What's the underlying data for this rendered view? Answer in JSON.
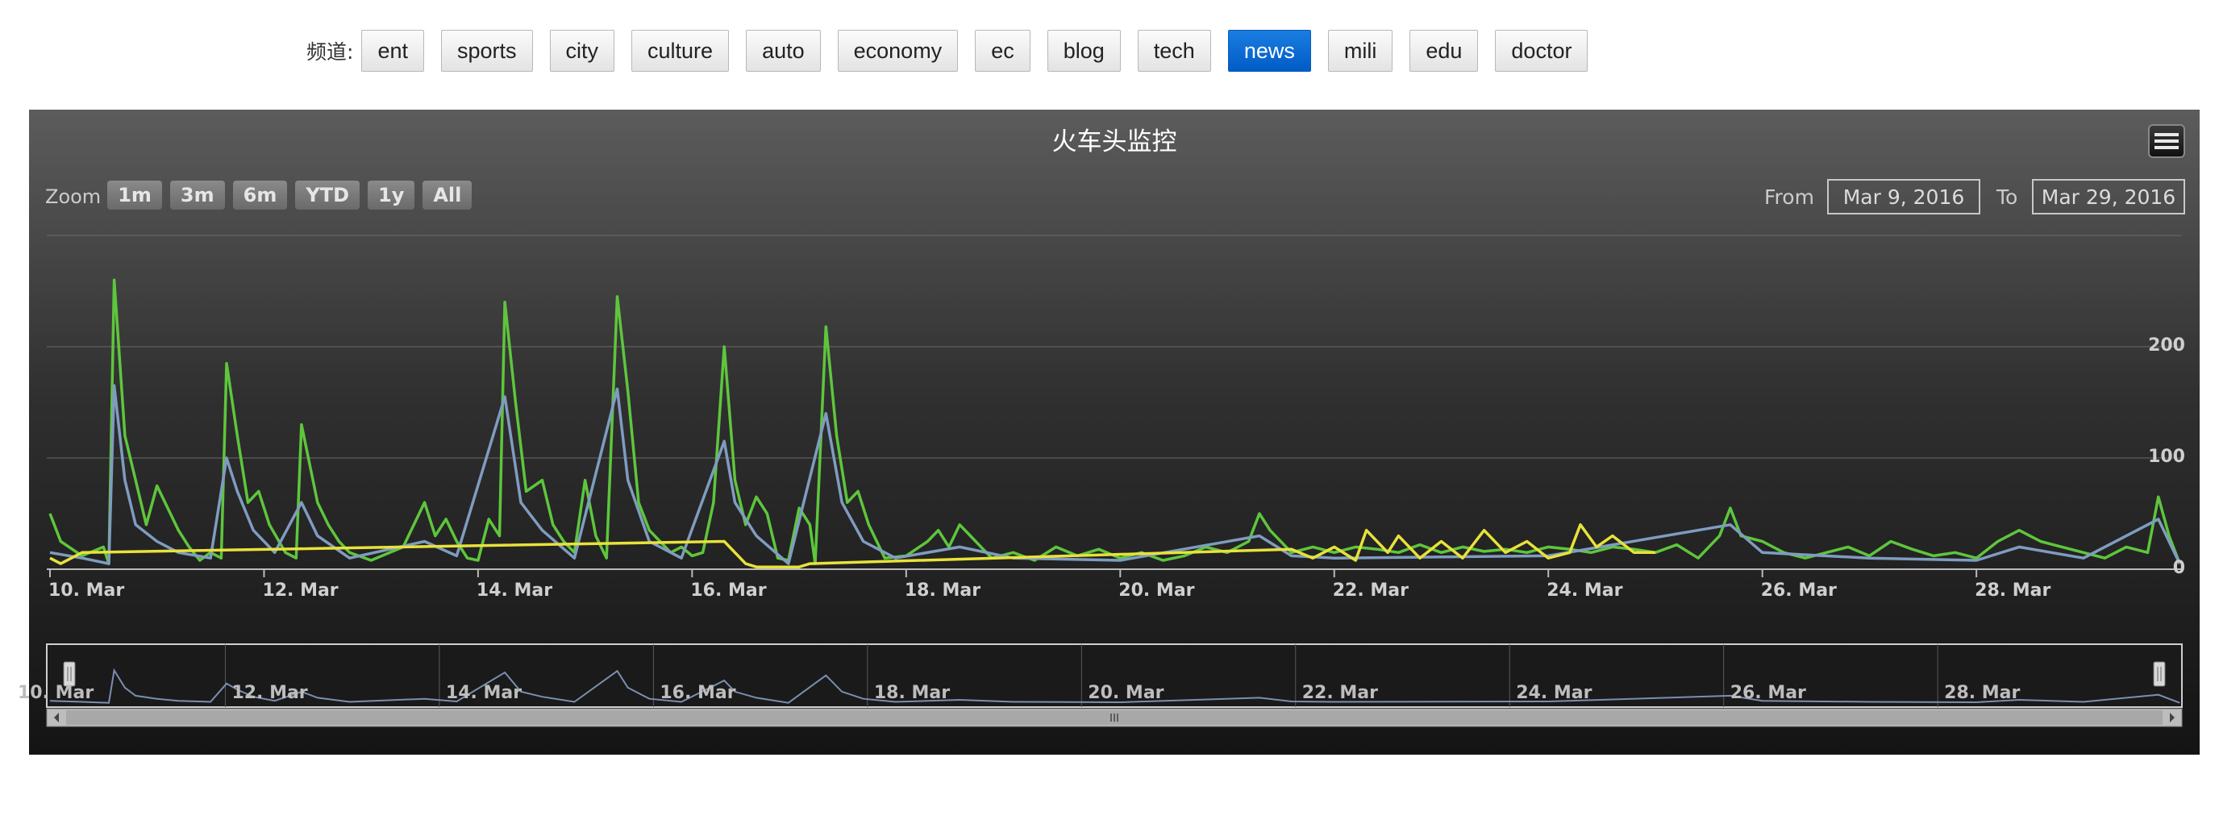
{
  "channel_bar": {
    "label": "频道:",
    "channels": [
      "ent",
      "sports",
      "city",
      "culture",
      "auto",
      "economy",
      "ec",
      "blog",
      "tech",
      "news",
      "mili",
      "edu",
      "doctor"
    ],
    "active": "news",
    "active_color": "#0066cc"
  },
  "toolbar": {
    "menu_icon": "hamburger-menu-icon",
    "zoom_label": "Zoom",
    "zoom_buttons": [
      "1m",
      "3m",
      "6m",
      "YTD",
      "1y",
      "All"
    ],
    "from_label": "From",
    "from_value": "Mar 9, 2016",
    "to_label": "To",
    "to_value": "Mar 29, 2016"
  },
  "chart_data": {
    "type": "line",
    "title": "火车头监控",
    "x_unit": "day of March 2016",
    "xlim": [
      9.97,
      29.92
    ],
    "ylim": [
      0,
      300
    ],
    "y_ticks": [
      0,
      100,
      200
    ],
    "x_tick_labels": [
      "10. Mar",
      "12. Mar",
      "14. Mar",
      "16. Mar",
      "18. Mar",
      "20. Mar",
      "22. Mar",
      "24. Mar",
      "26. Mar",
      "28. Mar"
    ],
    "navigator_tick_labels": [
      "10. Mar",
      "12. Mar",
      "14. Mar",
      "16. Mar",
      "18. Mar",
      "20. Mar",
      "22. Mar",
      "24. Mar",
      "26. Mar",
      "28. Mar"
    ],
    "grid": true,
    "legend": "none",
    "colors": {
      "series_1": "#5ec63c",
      "series_2": "#7f9cc0",
      "series_3": "#e8e23a",
      "navigator": "#7a8fb0"
    },
    "series": [
      {
        "color": "#5ec63c",
        "points": [
          [
            10.0,
            50
          ],
          [
            10.1,
            25
          ],
          [
            10.3,
            12
          ],
          [
            10.5,
            20
          ],
          [
            10.55,
            5
          ],
          [
            10.6,
            260
          ],
          [
            10.7,
            120
          ],
          [
            10.8,
            80
          ],
          [
            10.9,
            40
          ],
          [
            11.0,
            75
          ],
          [
            11.1,
            55
          ],
          [
            11.2,
            35
          ],
          [
            11.3,
            20
          ],
          [
            11.4,
            8
          ],
          [
            11.5,
            15
          ],
          [
            11.6,
            10
          ],
          [
            11.65,
            185
          ],
          [
            11.75,
            120
          ],
          [
            11.85,
            60
          ],
          [
            11.95,
            70
          ],
          [
            12.05,
            40
          ],
          [
            12.2,
            15
          ],
          [
            12.3,
            10
          ],
          [
            12.35,
            130
          ],
          [
            12.5,
            60
          ],
          [
            12.6,
            40
          ],
          [
            12.7,
            25
          ],
          [
            12.8,
            15
          ],
          [
            13.0,
            8
          ],
          [
            13.3,
            20
          ],
          [
            13.5,
            60
          ],
          [
            13.6,
            30
          ],
          [
            13.7,
            45
          ],
          [
            13.8,
            25
          ],
          [
            13.9,
            10
          ],
          [
            14.0,
            8
          ],
          [
            14.1,
            45
          ],
          [
            14.2,
            30
          ],
          [
            14.25,
            240
          ],
          [
            14.35,
            150
          ],
          [
            14.45,
            70
          ],
          [
            14.6,
            80
          ],
          [
            14.7,
            40
          ],
          [
            14.8,
            25
          ],
          [
            14.9,
            15
          ],
          [
            15.0,
            80
          ],
          [
            15.1,
            30
          ],
          [
            15.2,
            10
          ],
          [
            15.3,
            245
          ],
          [
            15.4,
            160
          ],
          [
            15.5,
            60
          ],
          [
            15.6,
            35
          ],
          [
            15.7,
            25
          ],
          [
            15.8,
            15
          ],
          [
            15.9,
            20
          ],
          [
            16.0,
            12
          ],
          [
            16.1,
            15
          ],
          [
            16.2,
            60
          ],
          [
            16.3,
            200
          ],
          [
            16.4,
            80
          ],
          [
            16.5,
            40
          ],
          [
            16.6,
            65
          ],
          [
            16.7,
            50
          ],
          [
            16.8,
            10
          ],
          [
            16.9,
            8
          ],
          [
            17.0,
            55
          ],
          [
            17.1,
            40
          ],
          [
            17.15,
            5
          ],
          [
            17.25,
            218
          ],
          [
            17.35,
            120
          ],
          [
            17.45,
            60
          ],
          [
            17.55,
            70
          ],
          [
            17.65,
            40
          ],
          [
            17.8,
            10
          ],
          [
            18.0,
            12
          ],
          [
            18.2,
            25
          ],
          [
            18.3,
            35
          ],
          [
            18.4,
            20
          ],
          [
            18.5,
            40
          ],
          [
            18.6,
            30
          ],
          [
            18.7,
            20
          ],
          [
            18.8,
            10
          ],
          [
            19.0,
            15
          ],
          [
            19.2,
            8
          ],
          [
            19.4,
            20
          ],
          [
            19.6,
            12
          ],
          [
            19.8,
            18
          ],
          [
            20.0,
            10
          ],
          [
            20.2,
            15
          ],
          [
            20.4,
            8
          ],
          [
            20.6,
            12
          ],
          [
            20.8,
            20
          ],
          [
            21.0,
            15
          ],
          [
            21.2,
            25
          ],
          [
            21.3,
            50
          ],
          [
            21.4,
            35
          ],
          [
            21.6,
            15
          ],
          [
            21.8,
            20
          ],
          [
            22.0,
            15
          ],
          [
            22.2,
            20
          ],
          [
            22.4,
            18
          ],
          [
            22.6,
            15
          ],
          [
            22.8,
            22
          ],
          [
            23.0,
            15
          ],
          [
            23.2,
            20
          ],
          [
            23.4,
            16
          ],
          [
            23.6,
            18
          ],
          [
            23.8,
            15
          ],
          [
            24.0,
            20
          ],
          [
            24.2,
            18
          ],
          [
            24.4,
            15
          ],
          [
            24.6,
            20
          ],
          [
            24.8,
            18
          ],
          [
            25.0,
            15
          ],
          [
            25.2,
            22
          ],
          [
            25.4,
            10
          ],
          [
            25.6,
            30
          ],
          [
            25.7,
            55
          ],
          [
            25.8,
            30
          ],
          [
            26.0,
            25
          ],
          [
            26.2,
            15
          ],
          [
            26.4,
            10
          ],
          [
            26.6,
            15
          ],
          [
            26.8,
            20
          ],
          [
            27.0,
            12
          ],
          [
            27.2,
            25
          ],
          [
            27.4,
            18
          ],
          [
            27.6,
            12
          ],
          [
            27.8,
            15
          ],
          [
            28.0,
            10
          ],
          [
            28.2,
            25
          ],
          [
            28.4,
            35
          ],
          [
            28.6,
            25
          ],
          [
            28.8,
            20
          ],
          [
            29.0,
            15
          ],
          [
            29.2,
            10
          ],
          [
            29.4,
            20
          ],
          [
            29.6,
            15
          ],
          [
            29.7,
            65
          ],
          [
            29.8,
            30
          ],
          [
            29.9,
            5
          ]
        ]
      },
      {
        "color": "#7f9cc0",
        "points": [
          [
            10.0,
            15
          ],
          [
            10.3,
            10
          ],
          [
            10.55,
            5
          ],
          [
            10.6,
            165
          ],
          [
            10.7,
            80
          ],
          [
            10.8,
            40
          ],
          [
            11.0,
            25
          ],
          [
            11.2,
            15
          ],
          [
            11.5,
            10
          ],
          [
            11.65,
            100
          ],
          [
            11.75,
            70
          ],
          [
            11.9,
            35
          ],
          [
            12.1,
            15
          ],
          [
            12.35,
            60
          ],
          [
            12.5,
            30
          ],
          [
            12.8,
            10
          ],
          [
            13.5,
            25
          ],
          [
            13.8,
            12
          ],
          [
            14.25,
            155
          ],
          [
            14.4,
            60
          ],
          [
            14.6,
            35
          ],
          [
            14.9,
            10
          ],
          [
            15.3,
            162
          ],
          [
            15.4,
            80
          ],
          [
            15.6,
            25
          ],
          [
            15.9,
            10
          ],
          [
            16.3,
            115
          ],
          [
            16.4,
            60
          ],
          [
            16.6,
            30
          ],
          [
            16.9,
            5
          ],
          [
            17.25,
            140
          ],
          [
            17.4,
            60
          ],
          [
            17.6,
            25
          ],
          [
            17.9,
            10
          ],
          [
            18.5,
            20
          ],
          [
            19.0,
            10
          ],
          [
            20.0,
            8
          ],
          [
            21.3,
            30
          ],
          [
            21.6,
            12
          ],
          [
            22.0,
            10
          ],
          [
            24.0,
            12
          ],
          [
            25.7,
            40
          ],
          [
            26.0,
            15
          ],
          [
            27.0,
            10
          ],
          [
            28.0,
            8
          ],
          [
            28.4,
            20
          ],
          [
            29.0,
            10
          ],
          [
            29.7,
            45
          ],
          [
            29.9,
            5
          ]
        ]
      },
      {
        "color": "#e8e23a",
        "points": [
          [
            10.0,
            10
          ],
          [
            10.1,
            5
          ],
          [
            10.3,
            15
          ],
          [
            16.3,
            25
          ],
          [
            16.5,
            5
          ],
          [
            16.6,
            2
          ],
          [
            17.0,
            2
          ],
          [
            17.1,
            5
          ],
          [
            21.6,
            18
          ],
          [
            21.8,
            10
          ],
          [
            22.0,
            20
          ],
          [
            22.2,
            8
          ],
          [
            22.3,
            35
          ],
          [
            22.5,
            15
          ],
          [
            22.6,
            30
          ],
          [
            22.8,
            10
          ],
          [
            23.0,
            25
          ],
          [
            23.2,
            10
          ],
          [
            23.4,
            35
          ],
          [
            23.6,
            15
          ],
          [
            23.8,
            25
          ],
          [
            24.0,
            10
          ],
          [
            24.2,
            15
          ],
          [
            24.3,
            40
          ],
          [
            24.45,
            20
          ],
          [
            24.6,
            30
          ],
          [
            24.8,
            15
          ],
          [
            25.0,
            15
          ]
        ]
      }
    ]
  }
}
